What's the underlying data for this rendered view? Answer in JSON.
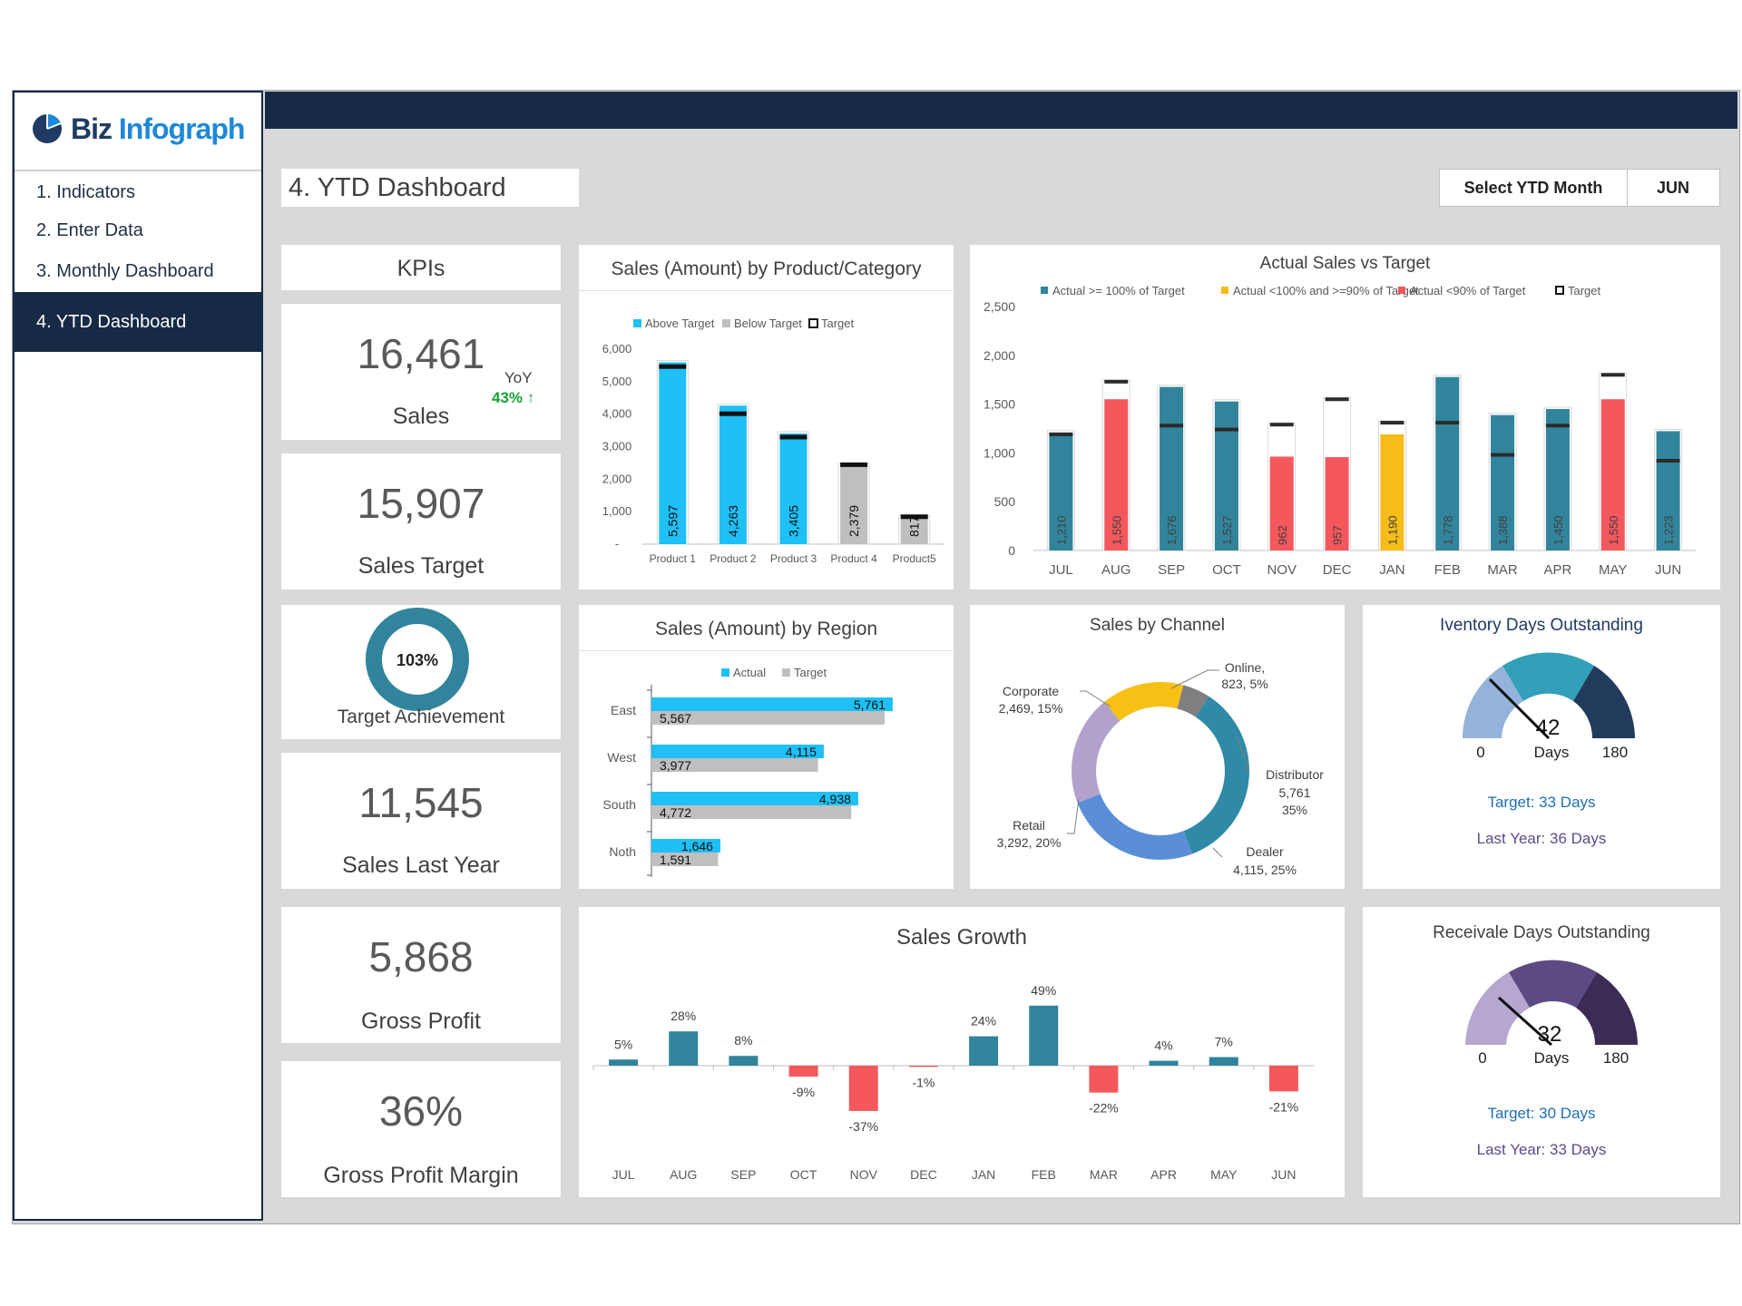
{
  "brand": {
    "biz": "Biz",
    "infograph": "Infograph"
  },
  "nav": {
    "items": [
      {
        "label": "1. Indicators"
      },
      {
        "label": "2. Enter Data"
      },
      {
        "label": "3. Monthly Dashboard"
      },
      {
        "label": "4. YTD Dashboard"
      }
    ]
  },
  "header": {
    "page_title": "4. YTD Dashboard",
    "select_label": "Select YTD Month",
    "select_value": "JUN"
  },
  "kpis": {
    "title": "KPIs",
    "sales": {
      "value": "16,461",
      "label": "Sales",
      "yoy_label": "YoY",
      "yoy_value": "43%",
      "yoy_arrow": "↑"
    },
    "sales_target": {
      "value": "15,907",
      "label": "Sales Target"
    },
    "target_achievement": {
      "value": "103%",
      "label": "Target Achievement",
      "fraction": 1.0
    },
    "sales_last_year": {
      "value": "11,545",
      "label": "Sales Last Year"
    },
    "gross_profit": {
      "value": "5,868",
      "label": "Gross Profit"
    },
    "gross_profit_margin": {
      "value": "36%",
      "label": "Gross Profit Margin"
    }
  },
  "inventory": {
    "title": "Iventory Days Outstanding",
    "value": "42",
    "unit": "Days",
    "min": "0",
    "max": "180",
    "target": "Target: 33 Days",
    "last_year": "Last Year: 36 Days"
  },
  "receivable": {
    "title": "Receivale Days Outstanding",
    "value": "32",
    "unit": "Days",
    "min": "0",
    "max": "180",
    "target": "Target: 30 Days",
    "last_year": "Last Year: 33 Days"
  },
  "colors": {
    "navy": "#172a45",
    "teal": "#31849b",
    "cyan": "#1ec0f5",
    "gray": "#bfbfbf",
    "red": "#f4585d",
    "yellow": "#f6bd1a",
    "green": "#17a535",
    "purple": "#5e4a8a"
  },
  "chart_data": [
    {
      "id": "product",
      "type": "bar",
      "title": "Sales (Amount) by Product/Category",
      "legend": [
        "Above Target",
        "Below Target",
        "Target"
      ],
      "categories": [
        "Product 1",
        "Product 2",
        "Product 3",
        "Product 4",
        "Product5"
      ],
      "values": [
        5597,
        4263,
        3405,
        2379,
        817
      ],
      "labels": [
        "5,597",
        "4,263",
        "3,405",
        "2,379",
        "817"
      ],
      "targets": [
        5450,
        4000,
        3280,
        2430,
        830
      ],
      "yticks": [
        "-",
        "1,000",
        "2,000",
        "3,000",
        "4,000",
        "5,000",
        "6,000"
      ],
      "ylim": [
        0,
        6000
      ]
    },
    {
      "id": "monthly",
      "type": "bar",
      "title": "Actual Sales vs Target",
      "legend": [
        "Actual >= 100% of Target",
        "Actual <100% and >=90% of Target",
        "Actual <90% of Target",
        "Target"
      ],
      "categories": [
        "JUL",
        "AUG",
        "SEP",
        "OCT",
        "NOV",
        "DEC",
        "JAN",
        "FEB",
        "MAR",
        "APR",
        "MAY",
        "JUN"
      ],
      "values": [
        1210,
        1550,
        1676,
        1527,
        962,
        957,
        1190,
        1778,
        1388,
        1450,
        1550,
        1223
      ],
      "labels": [
        "1,210",
        "1,550",
        "1,676",
        "1,527",
        "962",
        "957",
        "1,190",
        "1,778",
        "1,388",
        "1,450",
        "1,550",
        "1,223"
      ],
      "targets": [
        1190,
        1730,
        1280,
        1240,
        1290,
        1550,
        1310,
        1310,
        980,
        1280,
        1800,
        920
      ],
      "status": [
        "above",
        "below90",
        "above",
        "above",
        "below90",
        "below90",
        "between",
        "above",
        "above",
        "above",
        "below90",
        "above"
      ],
      "yticks": [
        "0",
        "500",
        "1,000",
        "1,500",
        "2,000",
        "2,500"
      ],
      "ylim": [
        0,
        2500
      ]
    },
    {
      "id": "region",
      "type": "bar",
      "title": "Sales (Amount) by Region",
      "legend": [
        "Actual",
        "Target"
      ],
      "categories": [
        "East",
        "West",
        "South",
        "Noth"
      ],
      "series": [
        {
          "name": "Actual",
          "values": [
            5761,
            4115,
            4938,
            1646
          ],
          "labels": [
            "5,761",
            "4,115",
            "4,938",
            "1,646"
          ]
        },
        {
          "name": "Target",
          "values": [
            5567,
            3977,
            4772,
            1591
          ],
          "labels": [
            "5,567",
            "3,977",
            "4,772",
            "1,591"
          ]
        }
      ],
      "xlim": [
        0,
        6500
      ]
    },
    {
      "id": "channel",
      "type": "pie",
      "title": "Sales by Channel",
      "slices": [
        {
          "name": "Online",
          "value": 823,
          "label_name": "Online,",
          "label_value": "823, 5%"
        },
        {
          "name": "Distributor",
          "value": 5761,
          "label_name": "Distributor",
          "label_value": "5,761",
          "label_pct": "35%"
        },
        {
          "name": "Dealer",
          "value": 4115,
          "label_name": "Dealer",
          "label_value": "4,115, 25%"
        },
        {
          "name": "Retail",
          "value": 3292,
          "label_name": "Retail",
          "label_value": "3,292, 20%"
        },
        {
          "name": "Corporate",
          "value": 2469,
          "label_name": "Corporate",
          "label_value": "2,469, 15%"
        }
      ]
    },
    {
      "id": "growth",
      "type": "bar",
      "title": "Sales Growth",
      "categories": [
        "JUL",
        "AUG",
        "SEP",
        "OCT",
        "NOV",
        "DEC",
        "JAN",
        "FEB",
        "MAR",
        "APR",
        "MAY",
        "JUN"
      ],
      "values": [
        5,
        28,
        8,
        -9,
        -37,
        -1,
        24,
        49,
        -22,
        4,
        7,
        -21
      ],
      "labels": [
        "5%",
        "28%",
        "8%",
        "-9%",
        "-37%",
        "-1%",
        "24%",
        "49%",
        "-22%",
        "4%",
        "7%",
        "-21%"
      ],
      "ylim": [
        -45,
        60
      ]
    }
  ]
}
